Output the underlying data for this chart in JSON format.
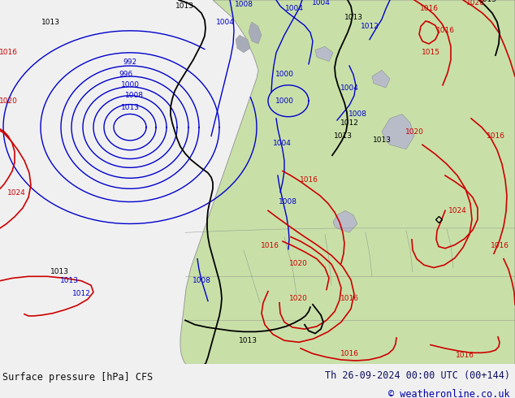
{
  "title_left": "Surface pressure [hPa] CFS",
  "title_right": "Th 26-09-2024 00:00 UTC (00+144)",
  "copyright": "© weatheronline.co.uk",
  "bg_color": "#d8dce8",
  "land_color": "#c8e0a8",
  "land_edge_color": "#909090",
  "water_color": "#d8dce8",
  "bottom_bar_color": "#f0f0f0",
  "text_color_left": "#101010",
  "text_color_right": "#101060",
  "copyright_color": "#0000aa",
  "blue": "#0000cc",
  "red": "#cc0000",
  "black": "#000000"
}
